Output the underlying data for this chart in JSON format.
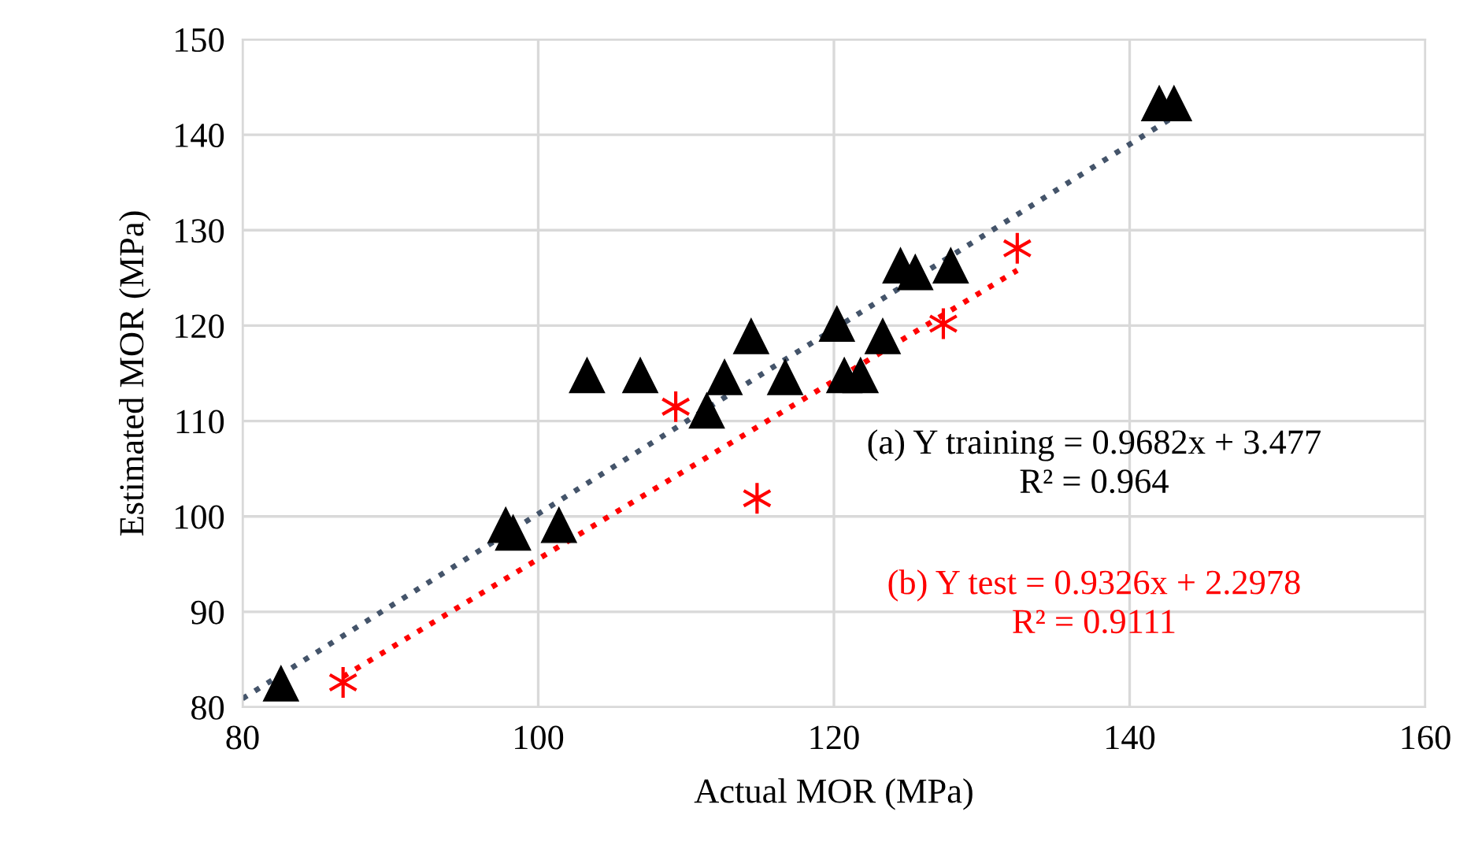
{
  "chart_data": {
    "type": "scatter",
    "xlabel": "Actual MOR (MPa)",
    "ylabel": "Estimated MOR (MPa)",
    "xlim": [
      80,
      160
    ],
    "xticks": [
      80,
      100,
      120,
      140,
      160
    ],
    "ylim": [
      80,
      150
    ],
    "yticks": [
      80,
      90,
      100,
      110,
      120,
      130,
      140,
      150
    ],
    "grid": true,
    "series": [
      {
        "marker": "triangle",
        "color": "#000000",
        "x": [
          82.6,
          97.8,
          98.3,
          101.4,
          103.3,
          106.9,
          111.4,
          112.6,
          114.4,
          116.7,
          120.2,
          120.7,
          121.8,
          123.3,
          124.5,
          125.5,
          127.9,
          142.0,
          143.0
        ],
        "values": [
          82.5,
          99.1,
          98.3,
          99.1,
          114.8,
          114.8,
          111.1,
          114.6,
          118.9,
          114.6,
          120.2,
          114.8,
          114.8,
          118.9,
          126.3,
          125.6,
          126.3,
          143.3,
          143.3
        ]
      },
      {
        "marker": "cross",
        "color": "#ff0000",
        "x": [
          86.8,
          109.3,
          114.8,
          127.4,
          132.4
        ],
        "values": [
          82.6,
          111.5,
          101.9,
          120.2,
          128.1
        ]
      },
      {
        "type": "line",
        "line_style": "dotted",
        "marker": "none",
        "color": "#44546a",
        "x": [
          80,
          143
        ],
        "values": [
          80.9,
          141.9
        ]
      },
      {
        "type": "line",
        "line_style": "dotted",
        "marker": "none",
        "color": "#ff0000",
        "x": [
          86.8,
          132.4
        ],
        "values": [
          83.2,
          125.8
        ]
      }
    ],
    "annotations": [
      "(a) Y training = 0.9682x + 3.477\nR² = 0.964",
      "(b) Y test = 0.9326x + 2.2978\nR² = 0.9111"
    ]
  }
}
